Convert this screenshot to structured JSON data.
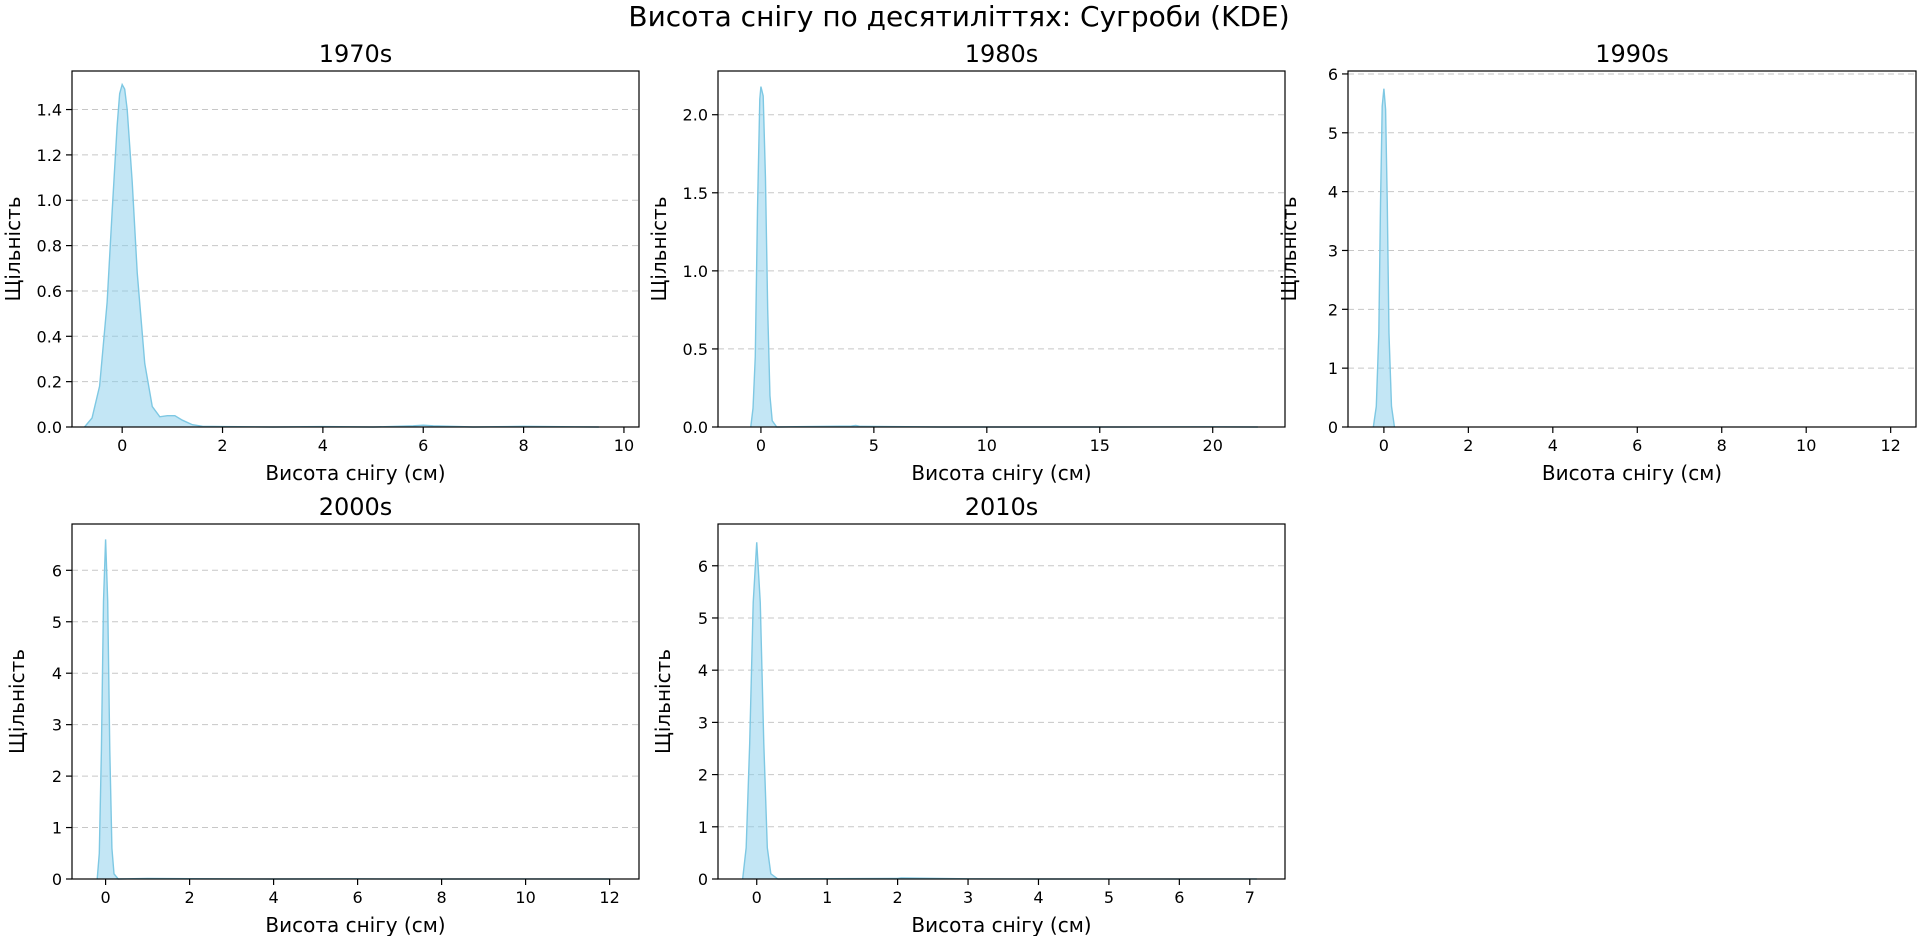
{
  "figure": {
    "title": "Висота снігу по десятиліттях: Сугроби (KDE)",
    "fill_color": "#87ceeb",
    "line_color": "#7ec8e3"
  },
  "chart_data": [
    {
      "type": "area",
      "title": "1970s",
      "xlabel": "Висота снігу (см)",
      "ylabel": "Щільність",
      "xlim": [
        -1.0,
        10.3
      ],
      "ylim": [
        0,
        1.57
      ],
      "xticks": [
        0,
        2,
        4,
        6,
        8,
        10
      ],
      "yticks": [
        0.0,
        0.2,
        0.4,
        0.6,
        0.8,
        1.0,
        1.2,
        1.4
      ],
      "ytick_labels": [
        "0.0",
        "0.2",
        "0.4",
        "0.6",
        "0.8",
        "1.0",
        "1.2",
        "1.4"
      ],
      "grid": "y",
      "x": [
        -0.75,
        -0.6,
        -0.45,
        -0.3,
        -0.2,
        -0.1,
        -0.05,
        0.0,
        0.05,
        0.1,
        0.2,
        0.3,
        0.45,
        0.6,
        0.75,
        0.9,
        1.05,
        1.2,
        1.4,
        1.6,
        2.0,
        3.0,
        4.0,
        5.0,
        5.8,
        6.0,
        6.2,
        7.0,
        8.0,
        9.0,
        9.5
      ],
      "y": [
        0.0,
        0.04,
        0.18,
        0.55,
        0.95,
        1.33,
        1.47,
        1.51,
        1.49,
        1.4,
        1.08,
        0.68,
        0.28,
        0.09,
        0.045,
        0.05,
        0.05,
        0.03,
        0.01,
        0.003,
        0.002,
        0.0,
        0.002,
        0.0,
        0.005,
        0.008,
        0.005,
        0.0,
        0.003,
        0.001,
        0.0
      ]
    },
    {
      "type": "area",
      "title": "1980s",
      "xlabel": "Висота снігу (см)",
      "ylabel": "Щільність",
      "xlim": [
        -1.9,
        23.2
      ],
      "ylim": [
        0,
        2.28
      ],
      "xticks": [
        0,
        5,
        10,
        15,
        20
      ],
      "yticks": [
        0.0,
        0.5,
        1.0,
        1.5,
        2.0
      ],
      "ytick_labels": [
        "0.0",
        "0.5",
        "1.0",
        "1.5",
        "2.0"
      ],
      "grid": "y",
      "x": [
        -0.45,
        -0.35,
        -0.25,
        -0.15,
        -0.05,
        0.0,
        0.1,
        0.2,
        0.3,
        0.4,
        0.5,
        0.7,
        2.0,
        4.0,
        4.2,
        4.4,
        8.0,
        12.0,
        16.0,
        20.0,
        22.0
      ],
      "y": [
        0.0,
        0.12,
        0.45,
        1.4,
        2.1,
        2.18,
        2.12,
        1.6,
        0.75,
        0.2,
        0.04,
        0.0,
        0.003,
        0.006,
        0.01,
        0.004,
        0.0,
        0.0,
        0.0,
        0.001,
        0.0
      ]
    },
    {
      "type": "area",
      "title": "1990s",
      "xlabel": "Висота снігу (см)",
      "ylabel": "Щільність",
      "xlim": [
        -0.85,
        12.6
      ],
      "ylim": [
        0,
        6.05
      ],
      "xticks": [
        0,
        2,
        4,
        6,
        8,
        10,
        12
      ],
      "yticks": [
        0,
        1,
        2,
        3,
        4,
        5,
        6
      ],
      "ytick_labels": [
        "0",
        "1",
        "2",
        "3",
        "4",
        "5",
        "6"
      ],
      "grid": "y",
      "x": [
        -0.25,
        -0.18,
        -0.12,
        -0.08,
        -0.04,
        0.0,
        0.04,
        0.08,
        0.12,
        0.18,
        0.25
      ],
      "y": [
        0.0,
        0.35,
        1.6,
        3.8,
        5.45,
        5.75,
        5.4,
        3.8,
        1.6,
        0.35,
        0.0
      ]
    },
    {
      "type": "area",
      "title": "2000s",
      "xlabel": "Висота снігу (см)",
      "ylabel": "Щільність",
      "xlim": [
        -0.8,
        12.7
      ],
      "ylim": [
        0,
        6.9
      ],
      "xticks": [
        0,
        2,
        4,
        6,
        8,
        10,
        12
      ],
      "yticks": [
        0,
        1,
        2,
        3,
        4,
        5,
        6
      ],
      "ytick_labels": [
        "0",
        "1",
        "2",
        "3",
        "4",
        "5",
        "6"
      ],
      "grid": "y",
      "x": [
        -0.2,
        -0.15,
        -0.1,
        -0.05,
        0.0,
        0.05,
        0.1,
        0.15,
        0.2,
        0.3,
        1.0,
        2.0,
        4.0,
        6.0,
        8.0,
        10.0,
        12.0
      ],
      "y": [
        0.0,
        0.5,
        2.5,
        5.4,
        6.6,
        5.4,
        2.5,
        0.6,
        0.1,
        0.0,
        0.01,
        0.005,
        0.0,
        0.003,
        0.0,
        0.002,
        0.0
      ]
    },
    {
      "type": "area",
      "title": "2010s",
      "xlabel": "Висота снігу (см)",
      "ylabel": "Щільність",
      "xlim": [
        -0.55,
        7.5
      ],
      "ylim": [
        0,
        6.8
      ],
      "xticks": [
        0,
        1,
        2,
        3,
        4,
        5,
        6,
        7
      ],
      "yticks": [
        0,
        1,
        2,
        3,
        4,
        5,
        6
      ],
      "ytick_labels": [
        "0",
        "1",
        "2",
        "3",
        "4",
        "5",
        "6"
      ],
      "grid": "y",
      "x": [
        -0.2,
        -0.15,
        -0.1,
        -0.05,
        0.0,
        0.05,
        0.1,
        0.15,
        0.2,
        0.3,
        1.0,
        2.0,
        2.05,
        3.0,
        4.0,
        5.0,
        6.0,
        7.0,
        7.1
      ],
      "y": [
        0.0,
        0.6,
        2.6,
        5.3,
        6.45,
        5.3,
        2.6,
        0.6,
        0.1,
        0.0,
        0.005,
        0.01,
        0.02,
        0.003,
        0.0,
        0.002,
        0.0,
        0.001,
        0.0
      ]
    }
  ]
}
